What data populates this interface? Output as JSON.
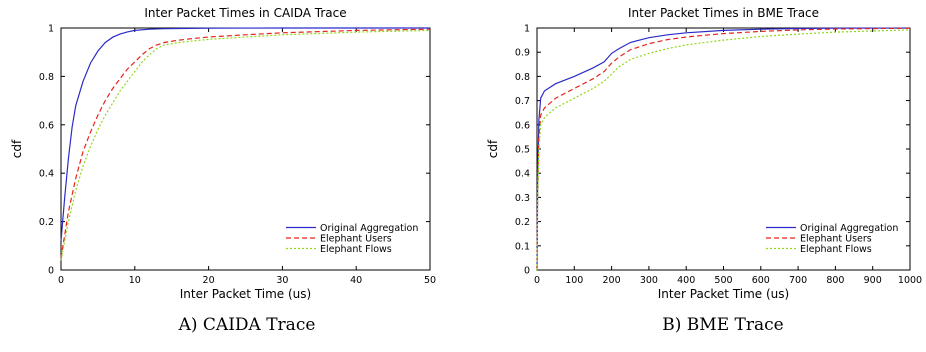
{
  "chart_data": [
    {
      "type": "line",
      "title": "Inter Packet Times in CAIDA Trace",
      "xlabel": "Inter Packet Time (us)",
      "ylabel": "cdf",
      "caption": "A) CAIDA Trace",
      "xlim": [
        0,
        50
      ],
      "ylim": [
        0,
        1
      ],
      "xticks": [
        0,
        10,
        20,
        30,
        40,
        50
      ],
      "yticks": [
        0,
        0.2,
        0.4,
        0.6,
        0.8,
        1
      ],
      "grid": false,
      "legend_position": "bottom-right",
      "series": [
        {
          "name": "Original Aggregation",
          "color": "#2b2bc8",
          "dash": "solid",
          "x": [
            0,
            0.5,
            1,
            1.5,
            2,
            3,
            4,
            5,
            6,
            7,
            8,
            9,
            10,
            12,
            14,
            16,
            20,
            30,
            40,
            50
          ],
          "y": [
            0.12,
            0.3,
            0.46,
            0.59,
            0.68,
            0.78,
            0.855,
            0.905,
            0.94,
            0.962,
            0.975,
            0.984,
            0.99,
            0.995,
            0.997,
            0.998,
            0.999,
            1.0,
            1.0,
            1.0
          ]
        },
        {
          "name": "Elephant Users",
          "color": "#e8251c",
          "dash": "dashed",
          "x": [
            0,
            1,
            2,
            3,
            4,
            5,
            6,
            7,
            8,
            9,
            10,
            11,
            12,
            13,
            14,
            16,
            18,
            20,
            25,
            30,
            40,
            50
          ],
          "y": [
            0.05,
            0.24,
            0.38,
            0.49,
            0.57,
            0.64,
            0.7,
            0.75,
            0.79,
            0.83,
            0.86,
            0.89,
            0.915,
            0.93,
            0.94,
            0.95,
            0.957,
            0.963,
            0.972,
            0.98,
            0.99,
            0.995
          ]
        },
        {
          "name": "Elephant Flows",
          "color": "#8fd81c",
          "dash": "dotted",
          "x": [
            0,
            1,
            2,
            3,
            4,
            5,
            6,
            7,
            8,
            9,
            10,
            11,
            12,
            13,
            14,
            16,
            18,
            20,
            25,
            30,
            40,
            50
          ],
          "y": [
            0.04,
            0.2,
            0.33,
            0.43,
            0.51,
            0.58,
            0.64,
            0.69,
            0.74,
            0.78,
            0.82,
            0.86,
            0.89,
            0.915,
            0.93,
            0.94,
            0.947,
            0.953,
            0.963,
            0.972,
            0.983,
            0.99
          ]
        }
      ]
    },
    {
      "type": "line",
      "title": "Inter Packet Times in BME Trace",
      "xlabel": "Inter Packet Time (us)",
      "ylabel": "cdf",
      "caption": "B) BME Trace",
      "xlim": [
        0,
        1000
      ],
      "ylim": [
        0,
        1
      ],
      "xticks": [
        0,
        100,
        200,
        300,
        400,
        500,
        600,
        700,
        800,
        900,
        1000
      ],
      "yticks": [
        0,
        0.1,
        0.2,
        0.3,
        0.4,
        0.5,
        0.6,
        0.7,
        0.8,
        0.9,
        1
      ],
      "grid": false,
      "legend_position": "bottom-right",
      "series": [
        {
          "name": "Original Aggregation",
          "color": "#2b2bc8",
          "dash": "solid",
          "x": [
            0,
            2,
            5,
            10,
            20,
            50,
            100,
            150,
            180,
            200,
            220,
            250,
            300,
            350,
            400,
            500,
            600,
            700,
            800,
            1000
          ],
          "y": [
            0.0,
            0.4,
            0.62,
            0.71,
            0.74,
            0.77,
            0.8,
            0.835,
            0.86,
            0.895,
            0.915,
            0.94,
            0.96,
            0.972,
            0.98,
            0.99,
            0.995,
            0.998,
            0.999,
            1.0
          ]
        },
        {
          "name": "Elephant Users",
          "color": "#e8251c",
          "dash": "dashed",
          "x": [
            0,
            2,
            5,
            10,
            20,
            50,
            100,
            150,
            180,
            200,
            220,
            250,
            300,
            350,
            400,
            500,
            600,
            700,
            800,
            1000
          ],
          "y": [
            0.0,
            0.35,
            0.55,
            0.64,
            0.67,
            0.71,
            0.75,
            0.79,
            0.82,
            0.855,
            0.88,
            0.91,
            0.935,
            0.952,
            0.963,
            0.977,
            0.986,
            0.992,
            0.996,
            0.999
          ]
        },
        {
          "name": "Elephant Flows",
          "color": "#8fd81c",
          "dash": "dotted",
          "x": [
            0,
            2,
            5,
            10,
            20,
            50,
            100,
            150,
            180,
            200,
            220,
            250,
            300,
            350,
            400,
            500,
            600,
            700,
            800,
            1000
          ],
          "y": [
            0.0,
            0.3,
            0.5,
            0.6,
            0.63,
            0.67,
            0.71,
            0.75,
            0.78,
            0.81,
            0.84,
            0.87,
            0.895,
            0.915,
            0.93,
            0.95,
            0.965,
            0.975,
            0.983,
            0.992
          ]
        }
      ]
    }
  ]
}
